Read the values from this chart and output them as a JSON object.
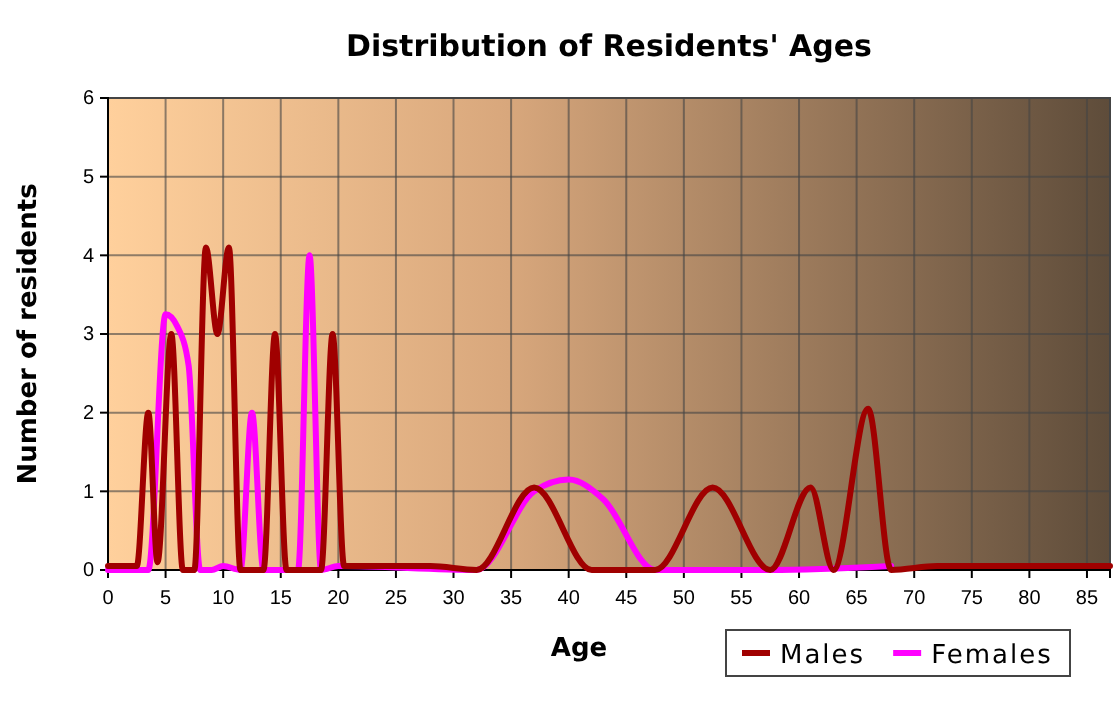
{
  "chart_data": {
    "type": "line",
    "title": "Distribution of Residents' Ages",
    "xlabel": "Age",
    "ylabel": "Number of residents",
    "xlim": [
      0,
      87
    ],
    "xticks": [
      0,
      5,
      10,
      15,
      20,
      25,
      30,
      35,
      40,
      45,
      50,
      55,
      60,
      65,
      70,
      75,
      80,
      85
    ],
    "ylim": [
      0,
      6
    ],
    "yticks": [
      0,
      1,
      2,
      3,
      4,
      5,
      6
    ],
    "grid": true,
    "legend": "bottom right",
    "marker": "none",
    "line_style": "solid",
    "series": [
      {
        "name": "Males",
        "color": "#a00000",
        "x": [
          0,
          2.5,
          3.5,
          4.3,
          5.5,
          6.5,
          7.5,
          8.5,
          9.5,
          10.5,
          11.5,
          13.5,
          14.5,
          15.5,
          18.5,
          19.5,
          20.5,
          28,
          32,
          37,
          42,
          47.5,
          52.5,
          57.5,
          61,
          63,
          66,
          68,
          72,
          87
        ],
        "values": [
          0.05,
          0.05,
          2,
          0.1,
          3,
          0,
          0,
          4.1,
          3,
          4.1,
          0,
          0,
          3,
          0,
          0,
          3,
          0.05,
          0.05,
          0,
          1.05,
          0,
          0,
          1.05,
          0,
          1.05,
          0,
          2.05,
          0,
          0.05,
          0.05
        ]
      },
      {
        "name": "Females",
        "color": "#ff00ff",
        "x": [
          0,
          3.5,
          5,
          6,
          7,
          8,
          9,
          10,
          11.5,
          12.5,
          13.5,
          16.5,
          17.5,
          18.5,
          20,
          28,
          32,
          37,
          40,
          43,
          47.5,
          52.5,
          57.5,
          68
        ],
        "values": [
          0,
          0,
          3.25,
          3.1,
          2.6,
          0,
          0,
          0.05,
          0,
          2,
          0,
          0,
          4,
          0,
          0.05,
          null,
          0,
          1,
          1.15,
          0.9,
          0,
          null,
          0,
          0.05
        ]
      }
    ]
  }
}
